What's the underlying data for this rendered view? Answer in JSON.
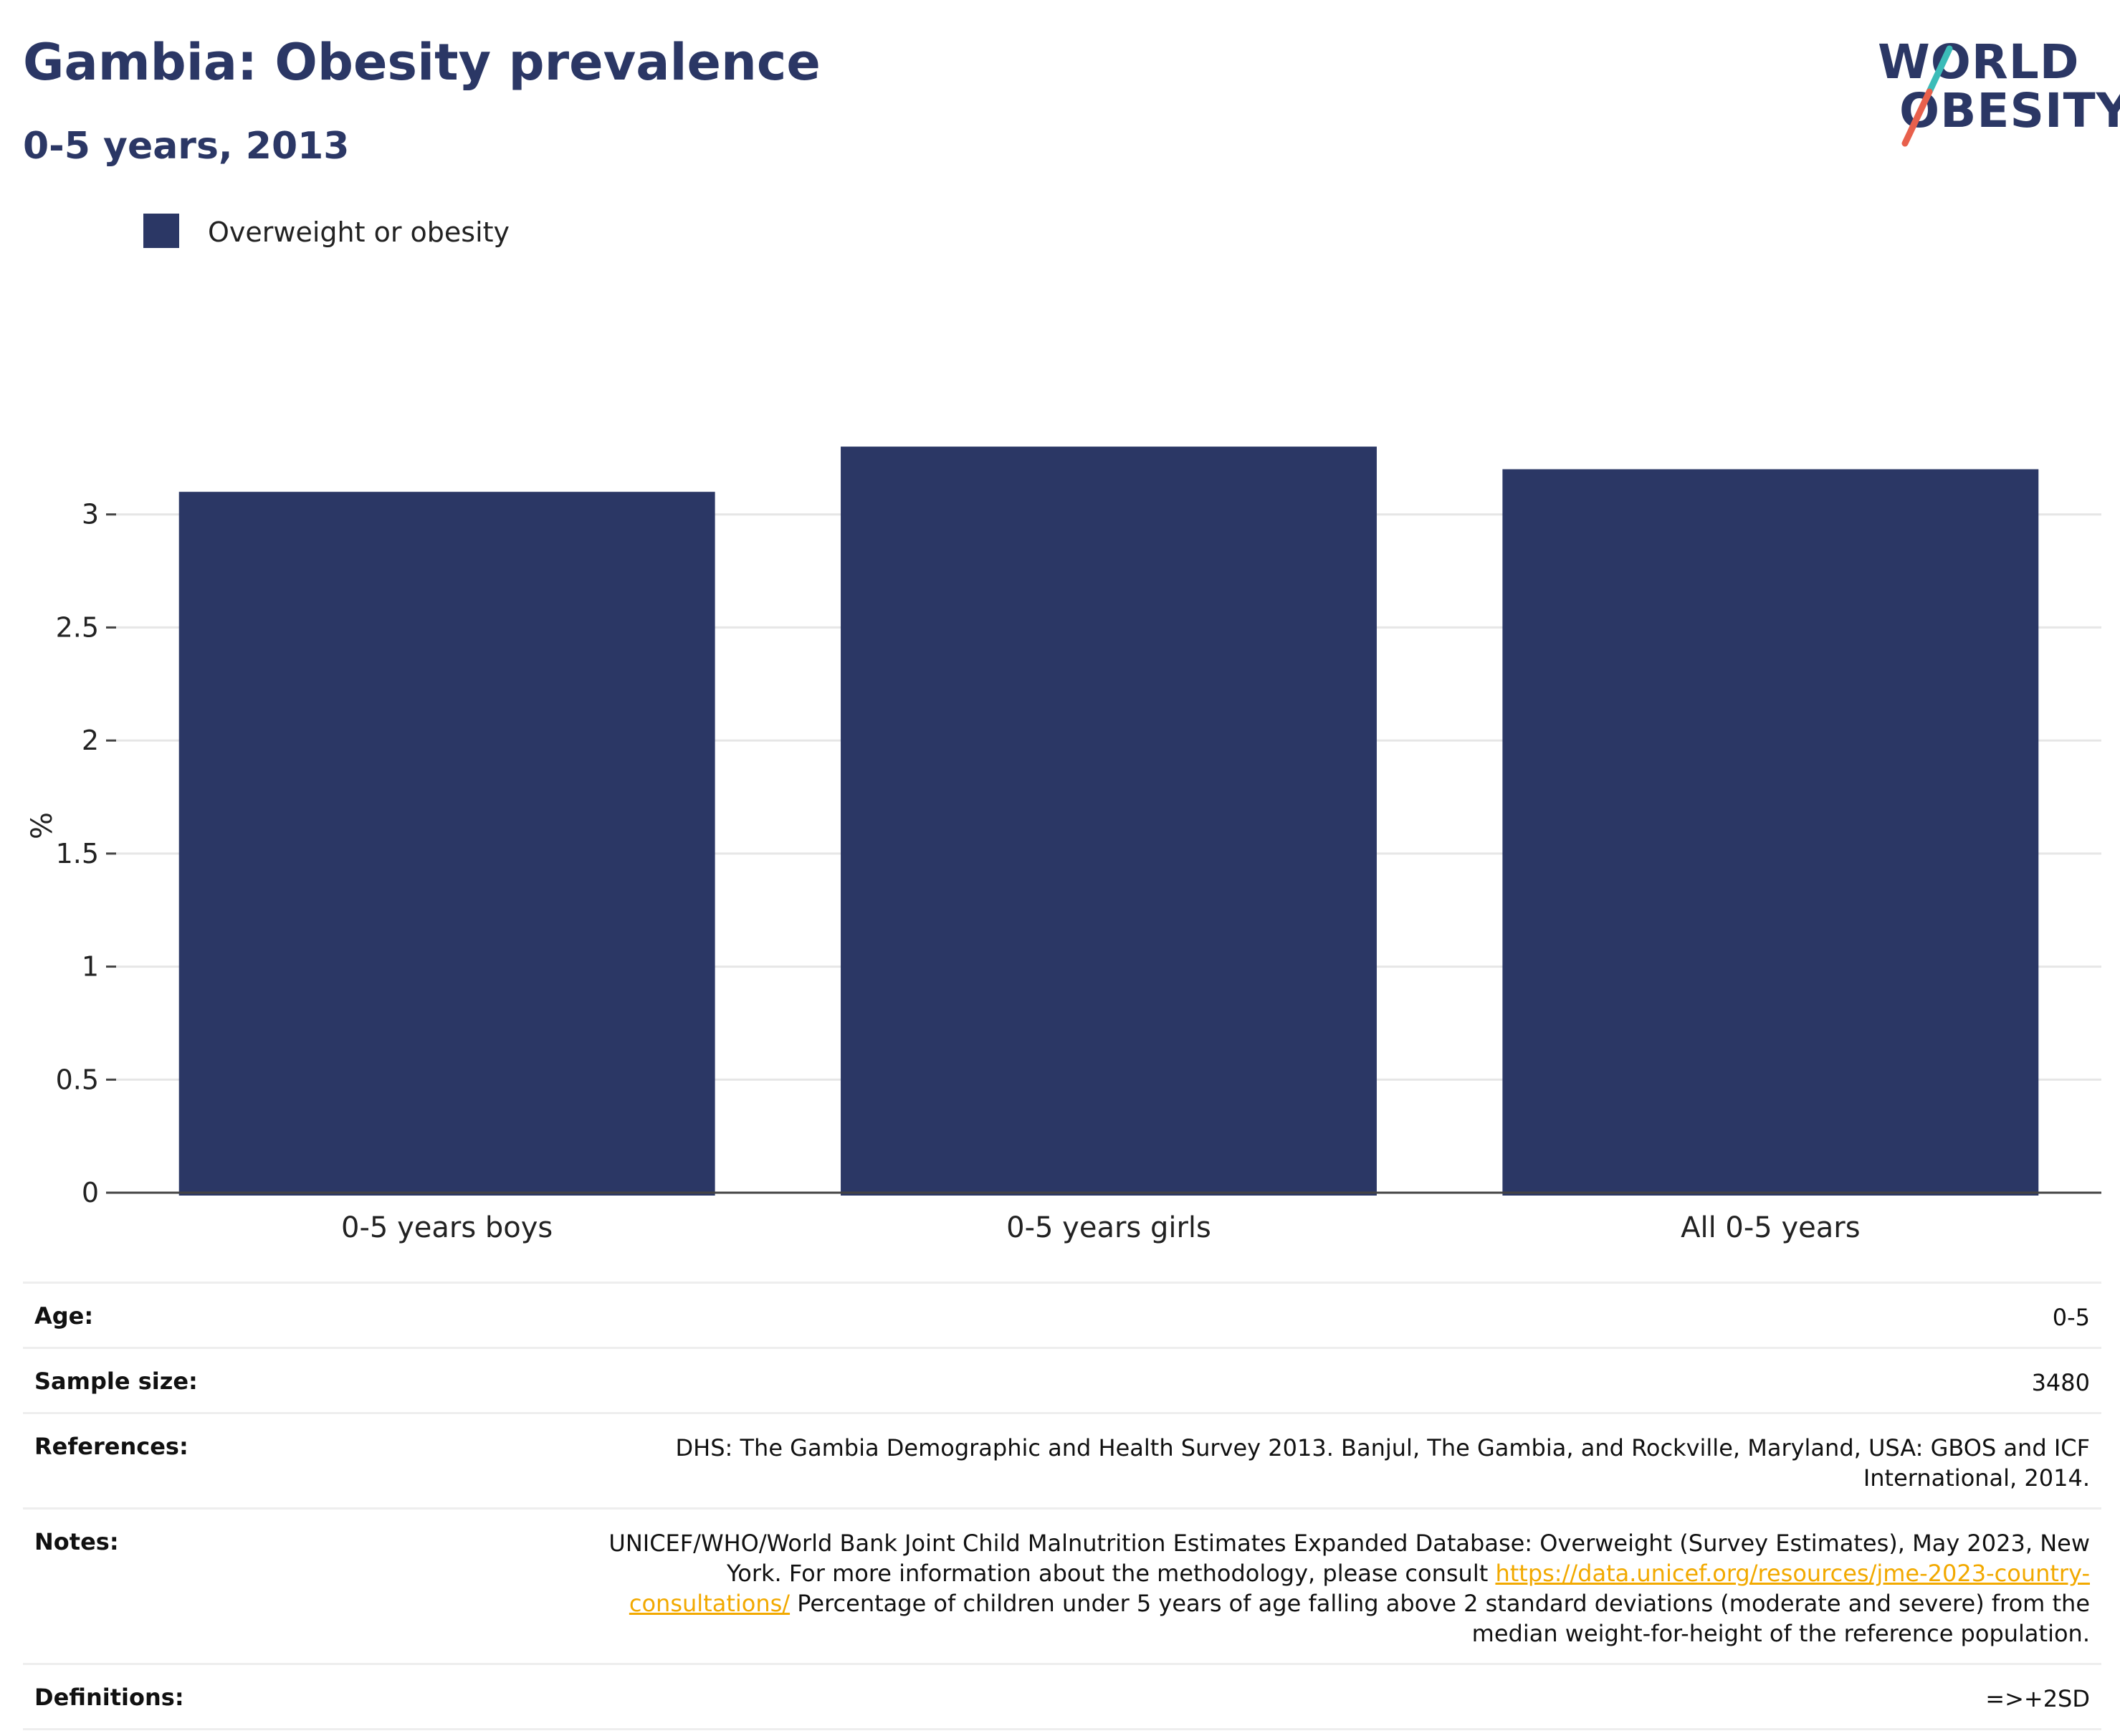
{
  "header": {
    "title": "Gambia: Obesity prevalence",
    "subtitle": "0-5 years, 2013"
  },
  "logo": {
    "line1": "WORLD",
    "line2": "OBESITY",
    "colors": {
      "text": "#2b3765",
      "slash_top": "#3bbcb8",
      "slash_bottom": "#e8604c"
    }
  },
  "legend": {
    "items": [
      {
        "label": "Overweight or obesity",
        "color": "#2b3765"
      }
    ]
  },
  "chart_data": {
    "type": "bar",
    "categories": [
      "0-5 years boys",
      "0-5 years girls",
      "All 0-5 years"
    ],
    "series": [
      {
        "name": "Overweight or obesity",
        "values": [
          3.1,
          3.3,
          3.2
        ],
        "color": "#2b3765"
      }
    ],
    "ylabel": "%",
    "xlabel": "",
    "ylim": [
      0,
      3.5
    ],
    "yticks": [
      0,
      0.5,
      1,
      1.5,
      2,
      2.5,
      3
    ],
    "ytick_labels": [
      "0",
      "0.5",
      "1",
      "1.5",
      "2",
      "2.5",
      "3"
    ],
    "grid": true,
    "legend_position": "top-left"
  },
  "info": {
    "age": {
      "label": "Age:",
      "value": "0-5"
    },
    "sample_size": {
      "label": "Sample size:",
      "value": "3480"
    },
    "references": {
      "label": "References:",
      "value": "DHS: The Gambia Demographic and Health Survey 2013. Banjul, The Gambia, and Rockville, Maryland, USA: GBOS and ICF International, 2014."
    },
    "notes": {
      "label": "Notes:",
      "text_before_link": "UNICEF/WHO/World Bank Joint Child Malnutrition Estimates Expanded Database: Overweight (Survey Estimates), May 2023, New York. For more information about the methodology, please consult ",
      "link": "https://data.unicef.org/resources/jme-2023-country-consultations/",
      "text_after_link": " Percentage of children under 5 years of age falling above 2 standard deviations (moderate and severe) from the median weight-for-height of the reference population."
    },
    "definitions": {
      "label": "Definitions:",
      "value": "=>+2SD"
    }
  }
}
